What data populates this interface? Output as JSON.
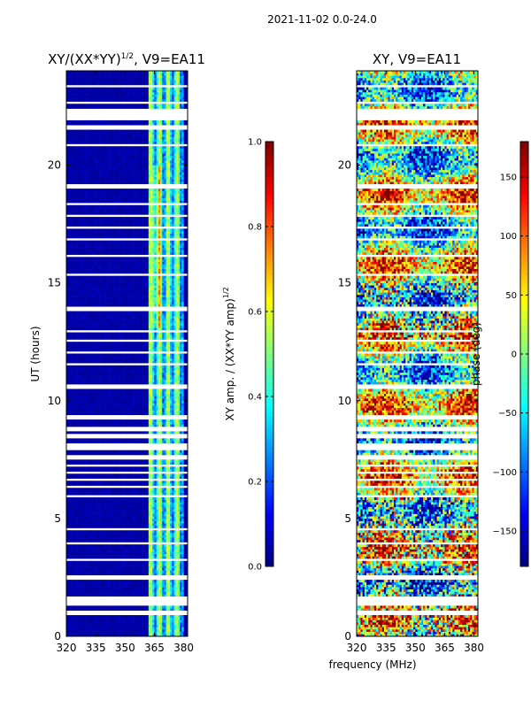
{
  "suptitle": "2021-11-02 0.0-24.0",
  "chart_data": [
    {
      "type": "heatmap",
      "id": "amp",
      "title_main": "XY/(XX*YY)",
      "title_sup": "1/2",
      "title_tail": ", V9=EA11",
      "ylabel": "UT (hours)",
      "xlabel": "",
      "xlim": [
        320,
        382
      ],
      "ylim": [
        0,
        24
      ],
      "xticks": [
        "320",
        "335",
        "350",
        "365",
        "380"
      ],
      "yticks": [
        "0",
        "5",
        "10",
        "15",
        "20"
      ],
      "xtick_values": [
        320,
        335,
        350,
        365,
        380
      ],
      "ytick_values": [
        0,
        5,
        10,
        15,
        20
      ],
      "colorbar": {
        "label_main": "XY amp. / (XX*YY amp)",
        "label_sup": "1/2",
        "range": [
          0.0,
          1.0
        ],
        "tick_values": [
          0.0,
          0.2,
          0.4,
          0.6,
          0.8,
          1.0
        ],
        "ticks": [
          "0.0",
          "0.2",
          "0.4",
          "0.6",
          "0.8",
          "1.0"
        ]
      },
      "description": "Low amplitude (~0.0-0.1) across most channels; bright band (0.3-0.6) between ~360-380 MHz; many flagged (white) time rows."
    },
    {
      "type": "heatmap",
      "id": "phase",
      "title_main": "XY, V9=EA11",
      "ylabel": "",
      "xlabel": "frequency (MHz)",
      "xlim": [
        320,
        382
      ],
      "ylim": [
        0,
        24
      ],
      "xticks": [
        "320",
        "335",
        "350",
        "365",
        "380"
      ],
      "yticks": [
        "0",
        "5",
        "10",
        "15",
        "20"
      ],
      "xtick_values": [
        320,
        335,
        350,
        365,
        380
      ],
      "ytick_values": [
        0,
        5,
        10,
        15,
        20
      ],
      "colorbar": {
        "label": "phase (deg)",
        "range": [
          -180,
          180
        ],
        "tick_values": [
          -150,
          -100,
          -50,
          0,
          50,
          100,
          150
        ],
        "ticks": [
          "−150",
          "−100",
          "−50",
          "0",
          "50",
          "100",
          "150"
        ]
      },
      "description": "Noisy phase map spanning full -180 to 180 deg range with flagged (white) rows."
    }
  ],
  "colors": {
    "jet": [
      "#00007f",
      "#0000ff",
      "#007fff",
      "#00ffff",
      "#7fff7f",
      "#ffff00",
      "#ff7f00",
      "#ff0000",
      "#7f0000"
    ],
    "flag": "#ffffff",
    "axis": "#000000"
  }
}
